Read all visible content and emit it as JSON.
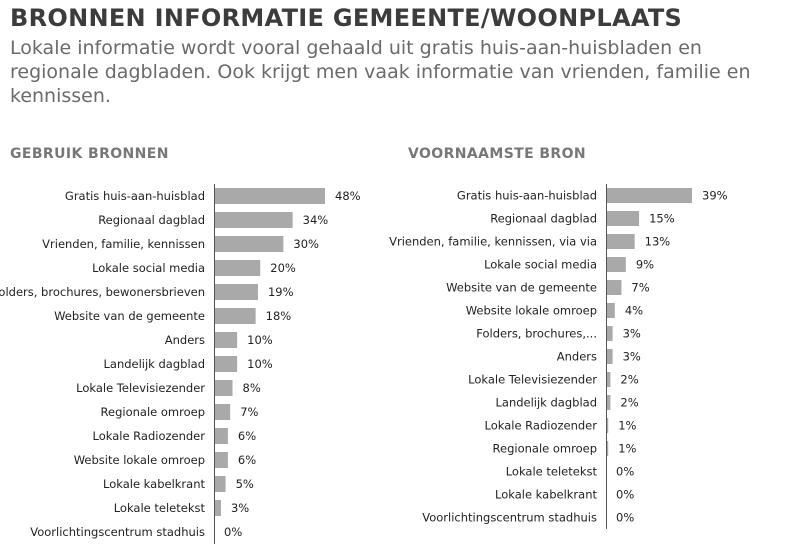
{
  "header": {
    "title": "BRONNEN INFORMATIE GEMEENTE/WOONPLAATS",
    "subtitle": "Lokale informatie wordt vooral gehaald uit gratis huis-aan-huisbladen en regionale dagbladen. Ook krijgt men vaak informatie van vrienden, familie en kennissen."
  },
  "colors": {
    "bar": "#a9a9a9",
    "axis": "#555555",
    "text": "#222222"
  },
  "chart_data": [
    {
      "type": "bar",
      "orientation": "horizontal",
      "title": "GEBRUIK BRONNEN",
      "unit": "%",
      "xlim": [
        0,
        48
      ],
      "grid": false,
      "categories": [
        "Gratis huis-aan-huisblad",
        "Regionaal dagblad",
        "Vrienden, familie, kennissen",
        "Lokale social media",
        "Folders, brochures, bewonersbrieven",
        "Website van de gemeente",
        "Anders",
        "Landelijk dagblad",
        "Lokale Televisiezender",
        "Regionale omroep",
        "Lokale Radiozender",
        "Website lokale omroep",
        "Lokale kabelkrant",
        "Lokale teletekst",
        "Voorlichtingscentrum stadhuis"
      ],
      "values": [
        48,
        34,
        30,
        20,
        19,
        18,
        10,
        10,
        8,
        7,
        6,
        6,
        5,
        3,
        0
      ]
    },
    {
      "type": "bar",
      "orientation": "horizontal",
      "title": "VOORNAAMSTE BRON",
      "unit": "%",
      "xlim": [
        0,
        39
      ],
      "grid": false,
      "categories": [
        "Gratis huis-aan-huisblad",
        "Regionaal dagblad",
        "Vrienden, familie, kennissen, via via",
        "Lokale social media",
        "Website van de gemeente",
        "Website lokale omroep",
        "Folders, brochures,...",
        "Anders",
        "Lokale Televisiezender",
        "Landelijk dagblad",
        "Lokale Radiozender",
        "Regionale omroep",
        "Lokale teletekst",
        "Lokale kabelkrant",
        "Voorlichtingscentrum stadhuis"
      ],
      "values": [
        39,
        15,
        13,
        9,
        7,
        4,
        3,
        3,
        2,
        2,
        1,
        1,
        0,
        0,
        0
      ]
    }
  ]
}
